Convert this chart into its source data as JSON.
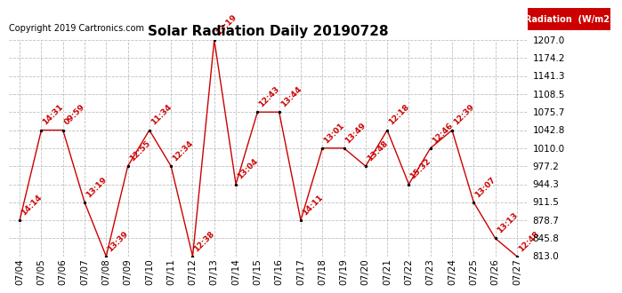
{
  "title": "Solar Radiation Daily 20190728",
  "copyright": "Copyright 2019 Cartronics.com",
  "legend_label": "Radiation  (W/m2)",
  "x_labels": [
    "07/04",
    "07/05",
    "07/06",
    "07/07",
    "07/08",
    "07/09",
    "07/10",
    "07/11",
    "07/12",
    "07/13",
    "07/14",
    "07/15",
    "07/16",
    "07/17",
    "07/18",
    "07/19",
    "07/20",
    "07/21",
    "07/22",
    "07/23",
    "07/24",
    "07/25",
    "07/26",
    "07/27"
  ],
  "y_values": [
    878.7,
    1042.8,
    1042.8,
    911.5,
    813.0,
    977.2,
    1042.8,
    977.2,
    813.0,
    1207.0,
    944.3,
    1075.7,
    1075.7,
    878.7,
    1010.0,
    1010.0,
    977.2,
    1042.8,
    944.3,
    1010.0,
    1042.8,
    911.5,
    845.8,
    813.0
  ],
  "point_labels": [
    "14:14",
    "14:31",
    "09:59",
    "13:19",
    "13:39",
    "12:55",
    "11:34",
    "12:34",
    "12:38",
    "13:19",
    "13:04",
    "12:43",
    "13:44",
    "14:11",
    "13:01",
    "13:49",
    "13:48",
    "12:18",
    "15:32",
    "12:46",
    "12:39",
    "13:07",
    "13:13",
    "12:48"
  ],
  "ylim_min": 813.0,
  "ylim_max": 1207.0,
  "y_ticks": [
    813.0,
    845.8,
    878.7,
    911.5,
    944.3,
    977.2,
    1010.0,
    1042.8,
    1075.7,
    1108.5,
    1141.3,
    1174.2,
    1207.0
  ],
  "line_color": "#cc0000",
  "marker_color": "#000000",
  "label_color": "#cc0000",
  "bg_color": "#ffffff",
  "grid_color": "#b0b0b0",
  "title_fontsize": 11,
  "legend_bg": "#cc0000",
  "legend_text_color": "#ffffff",
  "label_fontsize": 6.5,
  "tick_fontsize": 7.5,
  "copyright_fontsize": 7
}
